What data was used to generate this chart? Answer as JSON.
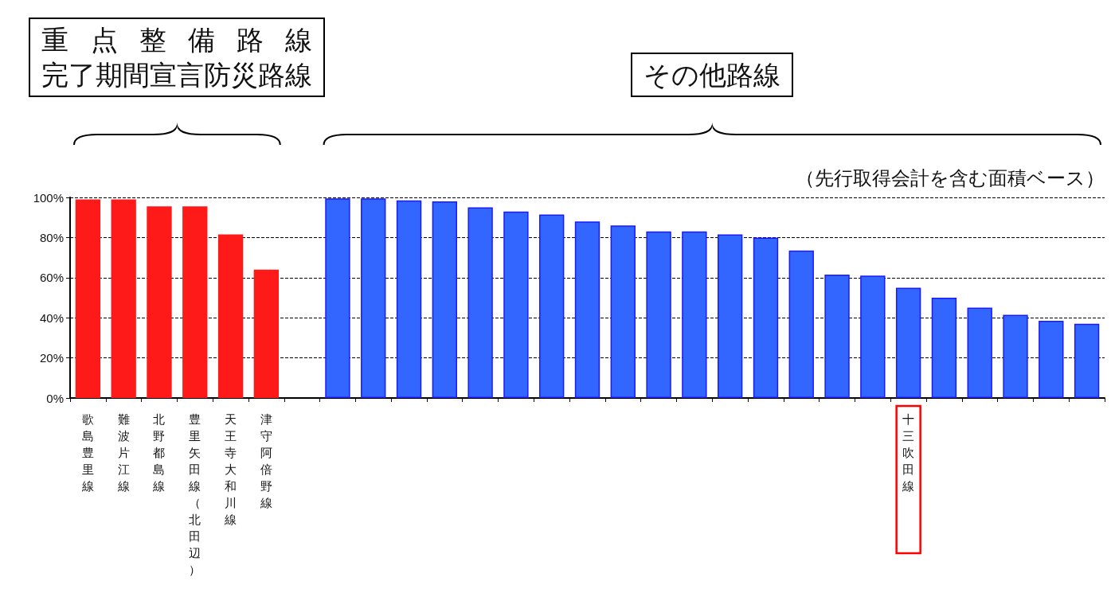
{
  "chart_data": {
    "type": "bar",
    "categories": [
      "歌島豊里線",
      "難波片江線",
      "北野都島線",
      "豊里矢田線（北田辺）",
      "天王寺大和川線",
      "津守阿倍野線",
      null,
      null,
      null,
      null,
      null,
      null,
      null,
      null,
      null,
      null,
      null,
      null,
      null,
      null,
      null,
      null,
      null,
      "十三吹田線",
      null,
      null,
      null,
      null,
      null
    ],
    "values": [
      99,
      99,
      95.5,
      95.5,
      81.5,
      64,
      null,
      99.5,
      99.5,
      98.5,
      98,
      95,
      93,
      91.5,
      88,
      86,
      83,
      83,
      81.5,
      80,
      73.5,
      61.5,
      61,
      55,
      50,
      45,
      41.5,
      38.5,
      37
    ],
    "colors": [
      "#ff1a1a",
      "#ff1a1a",
      "#ff1a1a",
      "#ff1a1a",
      "#ff1a1a",
      "#ff1a1a",
      null,
      "#3366ff",
      "#3366ff",
      "#3366ff",
      "#3366ff",
      "#3366ff",
      "#3366ff",
      "#3366ff",
      "#3366ff",
      "#3366ff",
      "#3366ff",
      "#3366ff",
      "#3366ff",
      "#3366ff",
      "#3366ff",
      "#3366ff",
      "#3366ff",
      "#3366ff",
      "#3366ff",
      "#3366ff",
      "#3366ff",
      "#3366ff",
      "#3366ff"
    ],
    "ylim": [
      0,
      100
    ],
    "yticks": [
      {
        "value": 0,
        "label": "0%"
      },
      {
        "value": 20,
        "label": "20%"
      },
      {
        "value": 40,
        "label": "40%"
      },
      {
        "value": 60,
        "label": "60%"
      },
      {
        "value": 80,
        "label": "80%"
      },
      {
        "value": 100,
        "label": "100%"
      }
    ],
    "grid": "y",
    "annotations": [
      "重点整備路線",
      "完了期間宣言防災路線",
      "その他路線",
      "（先行取得会計を含む面積ベース）"
    ]
  }
}
